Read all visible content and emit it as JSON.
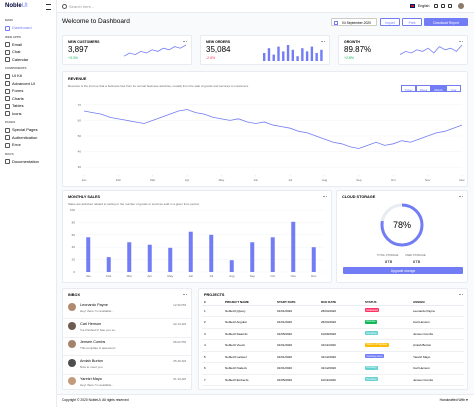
{
  "sidebar": {
    "logo_main": "Noble",
    "logo_accent": "UI",
    "sections": [
      {
        "title": "MAIN",
        "items": [
          "Dashboard"
        ]
      },
      {
        "title": "WEB APPS",
        "items": [
          "Email",
          "Chat",
          "Calendar"
        ]
      },
      {
        "title": "COMPONENTS",
        "items": [
          "UI Kit",
          "Advanced UI",
          "Forms",
          "Charts",
          "Tables",
          "Icons"
        ]
      },
      {
        "title": "PAGES",
        "items": [
          "Special Pages",
          "Authentication",
          "Error"
        ]
      },
      {
        "title": "DOCS",
        "items": [
          "Documentation"
        ]
      }
    ]
  },
  "topbar": {
    "search": "Search here...",
    "language": "English"
  },
  "header": {
    "title": "Welcome to Dashboard",
    "date": "04 September 2020",
    "buttons": [
      "Import",
      "Print",
      "Download Report"
    ]
  },
  "stats": [
    {
      "title": "NEW CUSTOMERS",
      "value": "3,897",
      "change": "+3.3%",
      "trend_type": "line",
      "trend_color": "#727cf5",
      "change_color": "#10b759",
      "trend": [
        3,
        5,
        4,
        6,
        5,
        7,
        6,
        8,
        7,
        9,
        8,
        10
      ]
    },
    {
      "title": "NEW ORDERS",
      "value": "35,084",
      "change": "-2.8%",
      "trend_type": "bar",
      "trend_color": "#727cf5",
      "change_color": "#ff3366",
      "trend": [
        5,
        8,
        4,
        9,
        6,
        10,
        7,
        3,
        8,
        6,
        9,
        5,
        7
      ]
    },
    {
      "title": "GROWTH",
      "value": "89.87%",
      "change": "+2.8%",
      "trend_type": "line",
      "trend_color": "#727cf5",
      "change_color": "#10b759",
      "trend": [
        4,
        6,
        5,
        7,
        6,
        8,
        5,
        9,
        7,
        8,
        6,
        10
      ]
    }
  ],
  "revenue": {
    "type": "line",
    "title": "REVENUE",
    "description": "Revenue is the income that a business has from its normal business activities, usually from the sale of goods and services to customers.",
    "tabs": [
      "Today",
      "Week",
      "Month",
      "Year"
    ],
    "active_tab": 2,
    "color": "#727cf5",
    "xlim": [
      0,
      44
    ],
    "xticks": [
      {
        "value": 0,
        "label": "Jan"
      },
      {
        "value": 4,
        "label": "Feb"
      },
      {
        "value": 8,
        "label": "Mar"
      },
      {
        "value": 12,
        "label": "Apr"
      },
      {
        "value": 16,
        "label": "May"
      },
      {
        "value": 20,
        "label": "Jun"
      },
      {
        "value": 24,
        "label": "Jul"
      },
      {
        "value": 28,
        "label": "Aug"
      },
      {
        "value": 32,
        "label": "Sep"
      },
      {
        "value": 36,
        "label": "Oct"
      },
      {
        "value": 40,
        "label": "Nov"
      },
      {
        "value": 44,
        "label": "Dec"
      }
    ],
    "ylim": [
      25,
      75
    ],
    "yticks": [
      30,
      40,
      50,
      60,
      70
    ],
    "values": [
      66,
      65,
      64,
      62,
      61,
      60,
      59,
      58,
      60,
      62,
      64,
      66,
      67,
      65,
      64,
      62,
      61,
      60,
      61,
      59,
      58,
      59,
      57,
      56,
      55,
      53,
      52,
      50,
      48,
      46,
      45,
      43,
      42,
      44,
      46,
      44,
      45,
      47,
      46,
      48,
      50,
      52,
      53,
      55,
      57
    ]
  },
  "sales": {
    "type": "bar",
    "title": "MONTHLY SALES",
    "description": "Sales are activities related to selling or the number of goods or services sold in a given time period.",
    "color": "#727cf5",
    "categories": [
      "Jan",
      "Feb",
      "Mar",
      "Apr",
      "May",
      "Jun",
      "Jul",
      "Aug",
      "Sep",
      "Oct",
      "Nov",
      "Dec"
    ],
    "values": [
      56,
      24,
      48,
      44,
      39,
      65,
      60,
      19,
      48,
      56,
      81,
      40
    ],
    "ylim": [
      0,
      100
    ],
    "yticks": [
      0,
      20,
      40,
      60,
      80,
      100
    ],
    "grid": true
  },
  "storage": {
    "title": "CLOUD STORAGE",
    "percent": 78,
    "percent_label": "78%",
    "color": "#727cf5",
    "total_label": "TOTAL STORAGE",
    "used_label": "USED STORAGE",
    "total": "8TB",
    "used": "6TB",
    "button": "Upgrade storage"
  },
  "inbox": {
    "title": "INBOX",
    "messages": [
      {
        "name": "Leonardo Payne",
        "text": "Hey! there I'm available...",
        "time": "12.30 PM"
      },
      {
        "name": "Carl Henson",
        "text": "I've finished it! See you so..",
        "time": "02.14 AM"
      },
      {
        "name": "Jensen Combs",
        "text": "This template is awesome!",
        "time": "08.22 PM"
      },
      {
        "name": "Amiah Burton",
        "text": "Nice to meet you",
        "time": "05.49 AM"
      },
      {
        "name": "Yaretzi Mayo",
        "text": "Hey! there I'm available...",
        "time": "01.19 AM"
      }
    ]
  },
  "projects": {
    "title": "PROJECTS",
    "columns": [
      "#",
      "PROJECT NAME",
      "START DATE",
      "DUE DATE",
      "STATUS",
      "ASSIGN"
    ],
    "rows": [
      {
        "cells": [
          "1",
          "NobleUI jQuery",
          "01/01/2020",
          "26/04/2020",
          "Released",
          "Leonardo Payne"
        ],
        "status_color": "#ff3366"
      },
      {
        "cells": [
          "2",
          "NobleUI Angular",
          "01/01/2020",
          "26/04/2020",
          "Review",
          "Carl Henson"
        ],
        "status_color": "#10b759"
      },
      {
        "cells": [
          "3",
          "NobleUI ReactJs",
          "01/05/2020",
          "10/09/2020",
          "Pending",
          "Jensen Combs"
        ],
        "status_color": "#66d1d1"
      },
      {
        "cells": [
          "4",
          "NobleUI VueJs",
          "01/01/2020",
          "31/11/2020",
          "Work in Progress",
          "Amiah Burton"
        ],
        "status_color": "#fbbc06"
      },
      {
        "cells": [
          "5",
          "NobleUI Laravel",
          "01/01/2020",
          "31/12/2020",
          "Coming soon",
          "Yaretzi Mayo"
        ],
        "status_color": "#727cf5"
      },
      {
        "cells": [
          "6",
          "NobleUI NodeJs",
          "01/01/2020",
          "31/12/2020",
          "Pending",
          "Carl Henson"
        ],
        "status_color": "#66d1d1"
      },
      {
        "cells": [
          "7",
          "NobleUI EmberJs",
          "01/05/2020",
          "10/11/2020",
          "Pending",
          "Jensen Combs"
        ],
        "status_color": "#66d1d1"
      }
    ]
  },
  "footer": {
    "copyright": "Copyright © 2020 NobleUI. All rights reserved",
    "credit": "Handcrafted With ♥"
  }
}
